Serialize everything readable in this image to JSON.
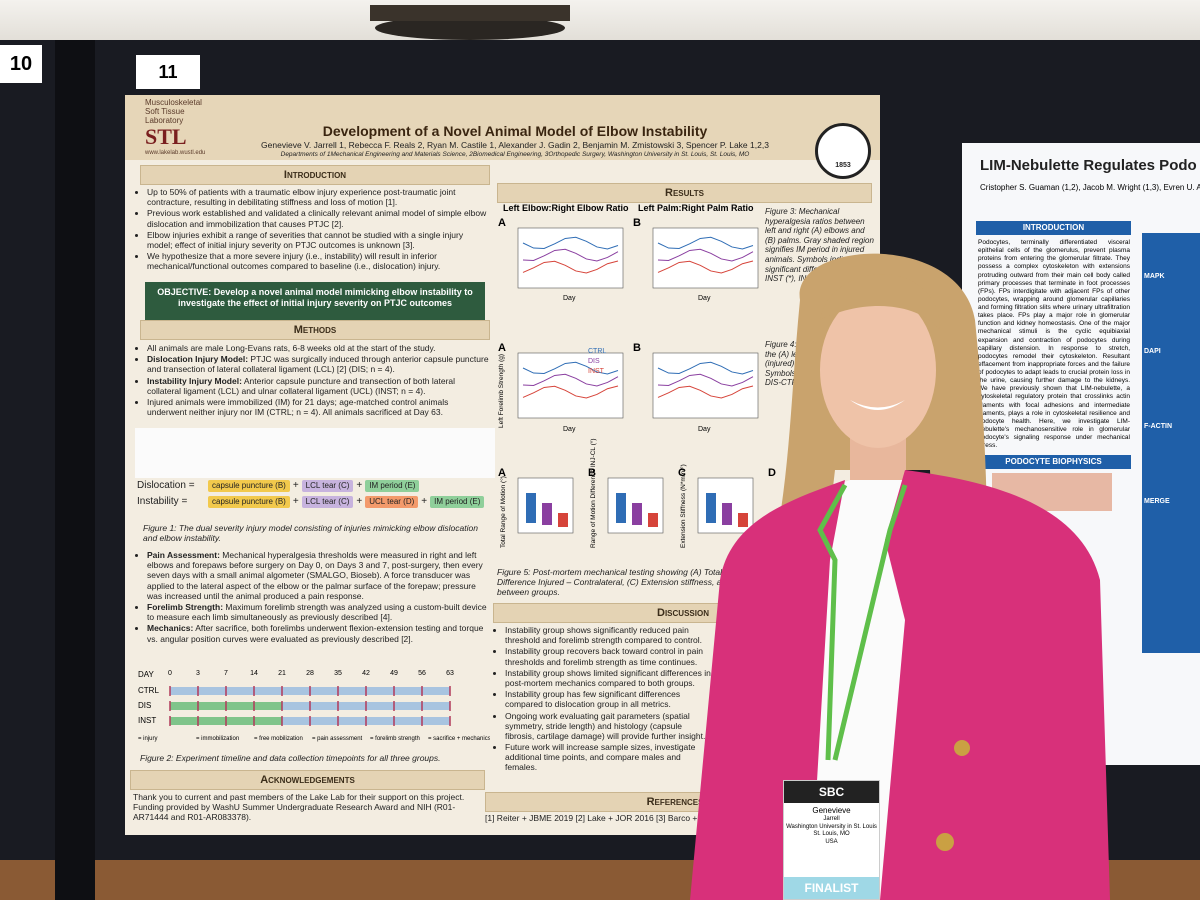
{
  "booth_numbers": [
    "10",
    "11"
  ],
  "poster": {
    "lab": {
      "line1": "Musculoskeletal",
      "line2": "Soft Tissue",
      "line3": "Laboratory",
      "abbr": "STL",
      "url": "www.lakelab.wustl.edu"
    },
    "title": "Development of a Novel Animal Model of Elbow Instability",
    "authors": "Genevieve V. Jarrell 1, Rebecca F. Reals 2, Ryan M. Castile 1, Alexander J. Gadin 2, Benjamin M. Zmistowski 3, Spencer P. Lake 1,2,3",
    "affiliations": "Departments of 1Mechanical Engineering and Materials Science, 2Biomedical Engineering, 3Orthopedic Surgery, Washington University in St. Louis, St. Louis, MO",
    "seal": "1853",
    "introduction": {
      "heading": "Introduction",
      "bullets": [
        {
          "text": "Up to 50% of patients with a traumatic elbow injury experience post-traumatic joint contracture, resulting in debilitating stiffness and loss of motion [1]."
        },
        {
          "text": "Previous work established and validated a clinically relevant animal model of simple elbow dislocation and immobilization that causes PTJC [2]."
        },
        {
          "text": "Elbow injuries exhibit a range of severities that cannot be studied with a single injury model; effect of initial injury severity on PTJC outcomes is unknown [3]."
        },
        {
          "text": "We hypothesize that a more severe injury (i.e., instability) will result in inferior mechanical/functional outcomes compared to baseline (i.e., dislocation) injury."
        }
      ]
    },
    "objective": "OBJECTIVE: Develop a novel animal model mimicking elbow instability to investigate the effect of initial injury severity on PTJC outcomes",
    "methods": {
      "heading": "Methods",
      "bullets": [
        {
          "text": "All animals are male Long-Evans rats, 6-8 weeks old at the start of the study."
        },
        {
          "lead": "Dislocation Injury Model:",
          "text": " PTJC was surgically induced through anterior capsule puncture and transection of lateral collateral ligament (LCL) [2] (DIS; n = 4)."
        },
        {
          "lead": "Instability Injury Model:",
          "text": " Anterior capsule puncture and transection of both lateral collateral ligament (LCL) and ulnar collateral ligament (UCL) (INST; n = 4)."
        },
        {
          "text": "Injured animals were immobilized (IM) for 21 days; age-matched control animals underwent neither injury nor IM (CTRL; n = 4). All animals sacrificed at Day 63."
        }
      ]
    },
    "figure1": {
      "equations": [
        {
          "name": "Dislocation =",
          "terms": [
            "capsule puncture (B)",
            "LCL tear (C)",
            "IM period (E)"
          ]
        },
        {
          "name": "Instability =",
          "terms": [
            "capsule puncture (B)",
            "LCL tear (C)",
            "UCL tear (D)",
            "IM period (E)"
          ]
        }
      ],
      "plus": "+",
      "caption": "Figure 1: The dual severity injury model consisting of injuries mimicking elbow dislocation and elbow instability."
    },
    "assessment": [
      {
        "lead": "Pain Assessment:",
        "text": " Mechanical hyperalgesia thresholds were measured in right and left elbows and forepaws before surgery on Day 0, on Days 3 and 7, post-surgery, then every seven days with a small animal algometer (SMALGO, Bioseb). A force transducer was applied to the lateral aspect of the elbow or the palmar surface of the forepaw; pressure was increased until the animal produced a pain response."
      },
      {
        "lead": "Forelimb Strength:",
        "text": " Maximum forelimb strength was analyzed using a custom-built device to measure each limb simultaneously as previously described [4]."
      },
      {
        "lead": "Mechanics:",
        "text": " After sacrifice, both forelimbs underwent flexion-extension testing and torque vs. angular position curves were evaluated as previously described [2]."
      }
    ],
    "figure2": {
      "day_label": "DAY",
      "days": [
        "0",
        "3",
        "7",
        "14",
        "21",
        "28",
        "35",
        "42",
        "49",
        "56",
        "63"
      ],
      "groups": [
        "CTRL",
        "DIS",
        "INST"
      ],
      "legend": [
        "= injury",
        "= immobilization",
        "= free mobilization",
        "= pain assessment",
        "= forelimb strength",
        "= sacrifice + mechanics"
      ],
      "caption": "Figure 2: Experiment timeline and data collection timepoints for all three groups."
    },
    "acknowledgements": {
      "heading": "Acknowledgements",
      "text": "Thank you to current and past members of the Lake Lab for their support on this project. Funding provided by WashU Summer Undergraduate Research Award and NIH (R01-AR71444 and R01-AR083378)."
    },
    "results": {
      "heading": "Results",
      "panel_titles": [
        "Left Elbow:Right Elbow Ratio",
        "Left Palm:Right Palm Ratio"
      ],
      "panel_letters": [
        "A",
        "B",
        "A",
        "B",
        "A",
        "B",
        "C",
        "D"
      ],
      "x_label": "Day",
      "legend": [
        "CTRL",
        "DIS",
        "INST"
      ],
      "y_labels": [
        "Left Forelimb Strength (g)",
        "Total Range of Motion (°)",
        "Range of Motion Difference INJ-CL (°)",
        "Extension Stiffness (N*mm/°)"
      ],
      "figure3": "Figure 3: Mechanical hyperalgesia ratios between left and right (A) elbows and (B) palms. Gray shaded region signifies IM period in injured animals. Symbols indicate significant differences between INST (*), INST- and DIS-CTRL",
      "figure4": "Figure 4: Forelimb strength in the (A) left (B) ratio between (injured) and (contralateral). Symbols in difference INST (*), DIS-CTRL",
      "figure5": "Figure 5: Post-mortem mechanical testing showing (A) Total range of motion, (B) Range of Motion Difference Injured – Contralateral, (C) Extension stiffness, and indicates significant differences between groups."
    },
    "discussion": {
      "heading": "Discussion",
      "bullets": [
        {
          "text": "Instability group shows significantly reduced pain threshold and forelimb strength compared to control."
        },
        {
          "text": "Instability group recovers back toward control in pain thresholds and forelimb strength as time continues."
        },
        {
          "text": "Instability group shows limited significant differences in post-mortem mechanics compared to both groups."
        },
        {
          "text": "Instability group has few significant differences compared to dislocation group in all metrics."
        },
        {
          "text": "Ongoing work evaluating gait parameters (spatial symmetry, stride length) and histology (capsule fibrosis, cartilage damage) will provide further insight."
        },
        {
          "text": "Future work will increase sample sizes, investigate additional time points, and compare males and females."
        }
      ]
    },
    "references": {
      "heading": "References",
      "text": "[1] Reiter + JBME 2019 [2] Lake + JOR 2016 [3] Barco +"
    }
  },
  "right_poster": {
    "title": "LIM-Nebulette Regulates Podo",
    "authors": "Cristopher S. Guaman (1,2), Jacob M. Wright (1,3), Evren U. Aze",
    "introduction": {
      "heading": "Introduction",
      "text": "Podocytes, terminally differentiated visceral epithelial cells of the glomerulus, prevent plasma proteins from entering the glomerular filtrate. They possess a complex cytoskeleton with extensions protruding outward from their main cell body called primary processes that terminate in foot processes (FPs). FPs interdigitate with adjacent FPs of other podocytes, wrapping around glomerular capillaries and forming filtration slits where urinary ultrafiltration takes place. FPs play a major role in glomerular function and kidney homeostasis. One of the major mechanical stimuli is the cyclic equibiaxial expansion and contraction of podocytes during capillary distension. In response to stretch, podocytes remodel their cytoskeleton. Resultant effacement from inappropriate forces and the failure of podocytes to adapt leads to crucial protein loss in the urine, causing further damage to the kidneys. We have previously shown that LIM-nebulette, a cytoskeletal regulatory protein that crosslinks actin filaments with focal adhesions and intermediate filaments, plays a role in cytoskeletal resilience and podocyte health. Here, we investigate LIM-nebulette's mechanosensitive role in glomerular podocyte's signaling response under mechanical stress."
    },
    "section2": "Podocyte Biophysics",
    "image_labels": [
      "MAPK",
      "DAPI",
      "F-ACTIN",
      "MERGE"
    ]
  },
  "badge": {
    "org": "SBC",
    "first_name": "Genevieve",
    "last_name": "Jarrell",
    "institution": "Washington University in St. Louis",
    "city": "St. Louis, MO",
    "country": "USA",
    "ribbon": "FINALIST"
  }
}
